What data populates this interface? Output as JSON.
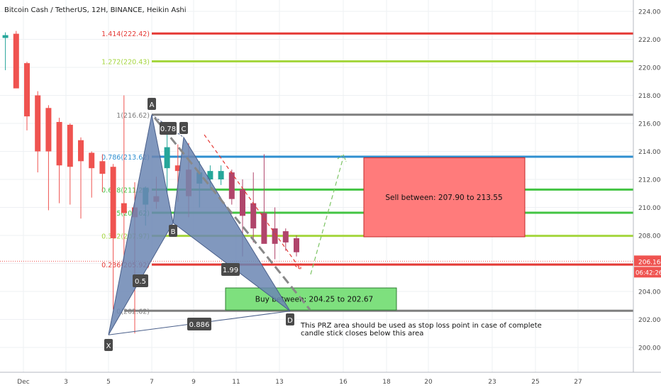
{
  "header": {
    "title": "Bitcoin Cash / TetherUS, 12H, BINANCE, Heikin Ashi"
  },
  "colors": {
    "up": "#26a69a",
    "down": "#ef5350",
    "down_dark": "#b0456b",
    "harmonic_fill": "#6b86b3",
    "sell_box": "#ff7b7b",
    "buy_box": "#7ee07e",
    "fib_red": "#e53935",
    "fib_yellow_green": "#a5d63f",
    "fib_green": "#43c443",
    "fib_blue": "#2f8fd0",
    "fib_gray": "#7f7f7f"
  },
  "price_label": {
    "value": "206.16",
    "countdown": "06:42:26"
  },
  "chart_data": {
    "type": "candlestick",
    "title": "Bitcoin Cash / TetherUS, 12H, BINANCE, Heikin Ashi",
    "y_axis": {
      "ylim": [
        198.5,
        224.6
      ],
      "ticks": [
        200,
        202,
        204,
        206,
        208,
        210,
        212,
        214,
        216,
        218,
        220,
        222,
        224
      ],
      "tick_labels": [
        "200.00",
        "202.00",
        "204.00",
        "206.00",
        "208.00",
        "210.00",
        "212.00",
        "214.00",
        "216.00",
        "218.00",
        "220.00",
        "222.00",
        "224.00"
      ]
    },
    "x_axis": {
      "ticks": [
        "Dec",
        "3",
        "5",
        "7",
        "9",
        "11",
        "13",
        "16",
        "18",
        "20",
        "23",
        "25",
        "27"
      ]
    },
    "candles": [
      {
        "o": 222.1,
        "h": 222.5,
        "l": 219.8,
        "c": 222.3,
        "dir": "up"
      },
      {
        "o": 222.4,
        "h": 222.6,
        "l": 218.6,
        "c": 218.5,
        "dir": "down"
      },
      {
        "o": 220.3,
        "h": 220.4,
        "l": 215.5,
        "c": 216.5,
        "dir": "down"
      },
      {
        "o": 218.0,
        "h": 218.3,
        "l": 212.5,
        "c": 214.0,
        "dir": "down"
      },
      {
        "o": 217.1,
        "h": 217.3,
        "l": 209.8,
        "c": 214.0,
        "dir": "down"
      },
      {
        "o": 216.1,
        "h": 216.4,
        "l": 210.3,
        "c": 213.0,
        "dir": "down"
      },
      {
        "o": 215.9,
        "h": 216.0,
        "l": 210.2,
        "c": 212.9,
        "dir": "down"
      },
      {
        "o": 214.8,
        "h": 215.0,
        "l": 209.2,
        "c": 213.3,
        "dir": "down"
      },
      {
        "o": 213.9,
        "h": 214.0,
        "l": 210.7,
        "c": 212.8,
        "dir": "down"
      },
      {
        "o": 213.3,
        "h": 213.8,
        "l": 211.1,
        "c": 212.4,
        "dir": "down"
      },
      {
        "o": 212.9,
        "h": 213.1,
        "l": 202.7,
        "c": 207.8,
        "dir": "down"
      },
      {
        "o": 210.3,
        "h": 218.0,
        "l": 206.0,
        "c": 209.6,
        "dir": "down"
      },
      {
        "o": 210.0,
        "h": 211.8,
        "l": 201.0,
        "c": 209.3,
        "dir": "down"
      },
      {
        "o": 210.2,
        "h": 211.5,
        "l": 208.7,
        "c": 211.4,
        "dir": "up"
      },
      {
        "o": 210.4,
        "h": 212.2,
        "l": 209.9,
        "c": 210.8,
        "dir": "down"
      },
      {
        "o": 212.8,
        "h": 216.1,
        "l": 211.0,
        "c": 214.3,
        "dir": "up"
      },
      {
        "o": 213.0,
        "h": 214.5,
        "l": 210.4,
        "c": 212.6,
        "dir": "down"
      },
      {
        "o": 212.7,
        "h": 214.6,
        "l": 209.3,
        "c": 210.8,
        "dir": "down"
      },
      {
        "o": 211.7,
        "h": 213.3,
        "l": 210.0,
        "c": 212.5,
        "dir": "up"
      },
      {
        "o": 212.0,
        "h": 213.0,
        "l": 211.4,
        "c": 212.6,
        "dir": "up"
      },
      {
        "o": 212.6,
        "h": 213.0,
        "l": 211.6,
        "c": 212.0,
        "dir": "up"
      },
      {
        "o": 212.5,
        "h": 212.7,
        "l": 210.2,
        "c": 210.6,
        "dir": "down"
      },
      {
        "o": 211.3,
        "h": 212.0,
        "l": 206.5,
        "c": 209.4,
        "dir": "down"
      },
      {
        "o": 210.3,
        "h": 212.5,
        "l": 207.5,
        "c": 208.5,
        "dir": "down"
      },
      {
        "o": 209.6,
        "h": 213.8,
        "l": 207.5,
        "c": 207.4,
        "dir": "down"
      },
      {
        "o": 208.5,
        "h": 210.0,
        "l": 206.3,
        "c": 207.4,
        "dir": "down"
      },
      {
        "o": 208.3,
        "h": 208.5,
        "l": 206.9,
        "c": 207.5,
        "dir": "down"
      },
      {
        "o": 207.8,
        "h": 208.0,
        "l": 206.5,
        "c": 206.8,
        "dir": "down"
      }
    ],
    "fib_levels": [
      {
        "ratio": "1.414",
        "price": 222.42,
        "label": "1.414(222.42)",
        "color": "#e53935"
      },
      {
        "ratio": "1.272",
        "price": 220.43,
        "label": "1.272(220.43)",
        "color": "#a5d63f"
      },
      {
        "ratio": "1",
        "price": 216.62,
        "label": "1(216.62)",
        "color": "#7f7f7f"
      },
      {
        "ratio": "0.786",
        "price": 213.62,
        "label": "0.786(213.62)",
        "color": "#2f8fd0"
      },
      {
        "ratio": "0.618",
        "price": 211.27,
        "label": "0.618(211.27)",
        "color": "#43c443"
      },
      {
        "ratio": "0.5",
        "price": 209.62,
        "label": "0.5(209.62)",
        "color": "#43c443"
      },
      {
        "ratio": "0.382",
        "price": 207.97,
        "label": "0.382(207.97)",
        "color": "#a5d63f"
      },
      {
        "ratio": "0.236",
        "price": 205.92,
        "label": "0.236(205.92)",
        "color": "#e53935"
      },
      {
        "ratio": "0",
        "price": 202.62,
        "label": "0(202.62)",
        "color": "#7f7f7f"
      }
    ],
    "harmonic_pattern": {
      "points": [
        {
          "name": "X",
          "price": 200.9
        },
        {
          "name": "A",
          "price": 216.62
        },
        {
          "name": "B",
          "price": 208.9
        },
        {
          "name": "C",
          "price": 215.0
        },
        {
          "name": "D",
          "price": 202.6
        }
      ],
      "ratios": {
        "xb": "0.5",
        "ac": "0.78",
        "bd": "1.99",
        "xd": "0.886"
      }
    },
    "zones": {
      "sell": {
        "label": "Sell between: 207.90 to 213.55",
        "low": 207.9,
        "high": 213.55
      },
      "buy": {
        "label": "Buy between: 204.25 to 202.67",
        "low": 202.67,
        "high": 204.25
      }
    },
    "note_lines": [
      "This PRZ area should be used as stop loss point in case of complete",
      "candle stick closes below this area"
    ],
    "last_price": 206.16
  }
}
